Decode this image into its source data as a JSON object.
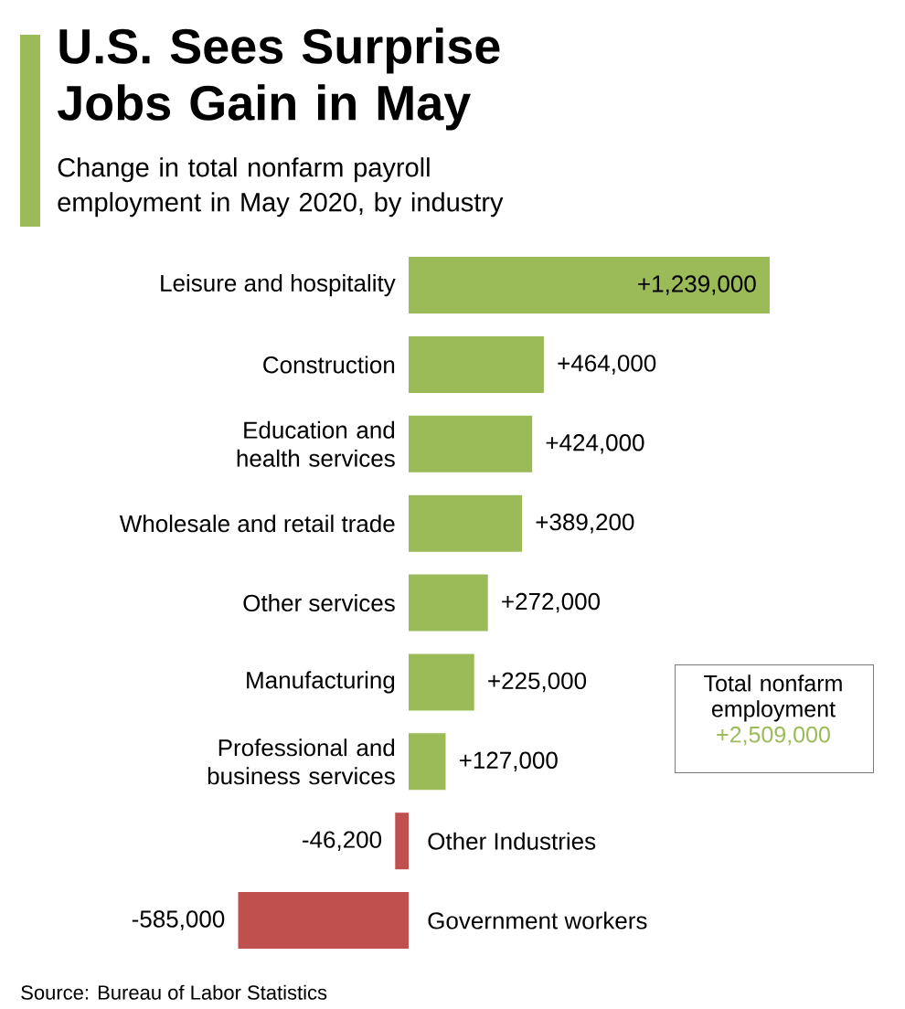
{
  "chart_data": {
    "type": "bar",
    "orientation": "horizontal",
    "title": "U.S. Sees Surprise Jobs Gain in May",
    "subtitle": "Change in total nonfarm payroll employment in May 2020, by industry",
    "categories": [
      "Leisure and hospitality",
      "Construction",
      "Education and health services",
      "Wholesale and retail trade",
      "Other services",
      "Manufacturing",
      "Professional and business services",
      "Other Industries",
      "Government workers"
    ],
    "values": [
      1239000,
      464000,
      424000,
      389200,
      272000,
      225000,
      127000,
      -46200,
      -585000
    ],
    "colors": [
      "#9bbb59",
      "#9bbb59",
      "#9bbb59",
      "#9bbb59",
      "#9bbb59",
      "#9bbb59",
      "#9bbb59",
      "#c0504d",
      "#c0504d"
    ],
    "value_labels": [
      "+1,239,000",
      "+464,000",
      "+424,000",
      "+389,200",
      "+272,000",
      "+225,000",
      "+127,000",
      "-46,200",
      "-585,000"
    ],
    "annotations": [
      "Total nonfarm employment",
      "+2,509,000",
      "Source: Bureau of Labor Statistics"
    ]
  }
}
